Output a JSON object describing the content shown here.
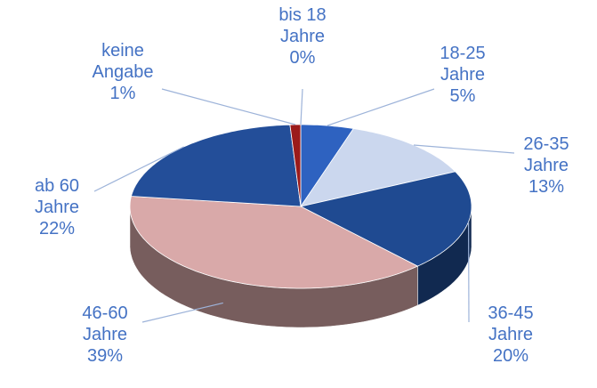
{
  "chart_data": {
    "type": "pie3d",
    "categories": [
      "bis 18 Jahre",
      "18-25 Jahre",
      "26-35 Jahre",
      "36-45 Jahre",
      "46-60 Jahre",
      "ab 60 Jahre",
      "keine Angabe"
    ],
    "values": [
      0,
      5,
      13,
      20,
      39,
      22,
      1
    ],
    "value_labels": [
      "0%",
      "5%",
      "13%",
      "20%",
      "39%",
      "22%",
      "1%"
    ],
    "colors": [
      "#c00000",
      "#2e62c0",
      "#cbd7ee",
      "#1f4a91",
      "#d9a9a9",
      "#234e99",
      "#9b1b1b"
    ]
  }
}
